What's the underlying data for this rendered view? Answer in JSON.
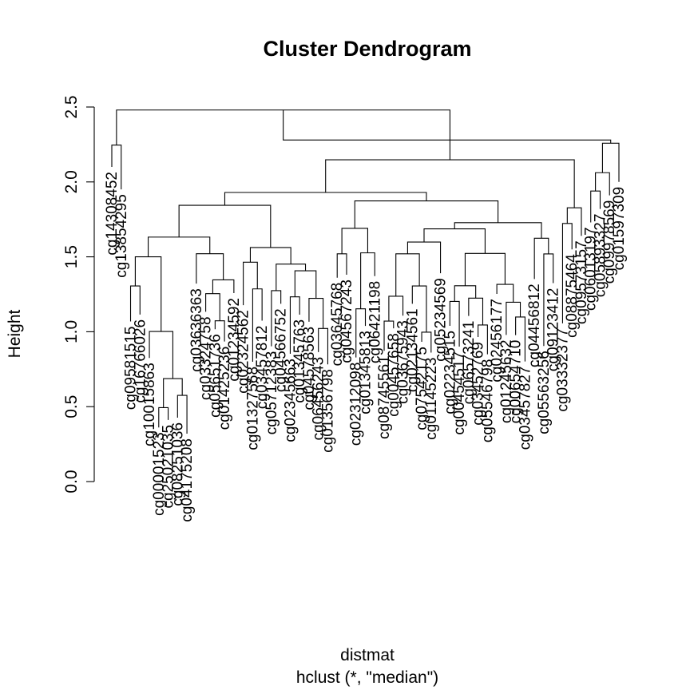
{
  "chart_data": {
    "type": "dendrogram",
    "title": "Cluster Dendrogram",
    "ylabel": "Height",
    "xlabel": "distmat",
    "sub": "hclust (*, \"median\")",
    "ylim": [
      0,
      2.5
    ],
    "yticks": [
      "0.0",
      "0.5",
      "1.0",
      "1.5",
      "2.0",
      "2.5"
    ],
    "tick_values": [
      0,
      0.5,
      1.0,
      1.5,
      2.0,
      2.5
    ],
    "leaves": [
      "cg14308452",
      "cg13854295",
      "cg09581515",
      "cg16766026",
      "cg10015863",
      "cg00001523",
      "cg25021035",
      "cg08251036",
      "cg04175208",
      "cg03636363",
      "cg03324758",
      "cg05651736",
      "cg01425236",
      "cg01234592",
      "cg02324562",
      "cg01327568",
      "cg03457812",
      "cg05712383",
      "cg04566752",
      "cg02345663",
      "cg01345763",
      "cg04578563",
      "cg06456243",
      "cg01356798",
      "cg03645768",
      "cg04567243",
      "cg02312098",
      "cg01345813",
      "cg06421198",
      "cg08745561",
      "cg00457658",
      "cg03675943",
      "cg02134561",
      "cg07542175",
      "cg01145223",
      "cg05234569",
      "cg02234515",
      "cg00454517",
      "cg06573241",
      "cg03452769",
      "cg05546798",
      "cg02456177",
      "cg01245632",
      "cg00654710",
      "cg03457827",
      "cg04456812",
      "cg05563256",
      "cg09123412",
      "cg03332377",
      "cg08875464",
      "cg09573157",
      "cg06013197",
      "cg05893327",
      "cg09978569",
      "cg01597309"
    ],
    "heights": [
      2.28,
      2.12,
      1.99,
      1.94,
      1.86,
      1.67,
      1.62,
      1.6,
      1.58,
      1.5,
      1.48,
      1.45,
      1.22,
      0.89,
      0.74,
      0.64,
      2.48,
      2.25,
      2.18,
      1.98,
      1.75,
      1.65,
      1.6,
      1.55,
      1.38,
      1.3,
      1.24,
      1.2,
      1.14,
      1.09,
      1.05,
      1.0,
      0.94,
      0.88,
      0.84
    ]
  }
}
